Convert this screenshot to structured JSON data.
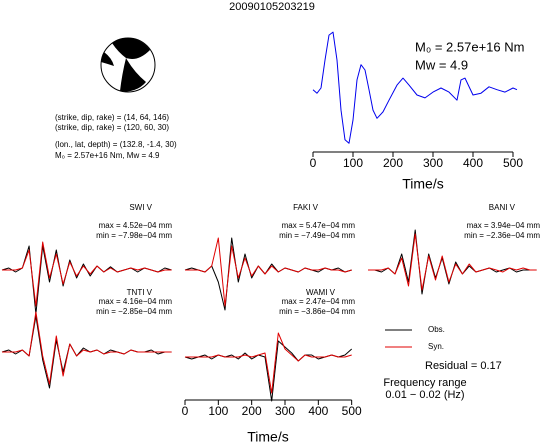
{
  "title": "20090105203219",
  "mechanism": [
    "(strike, dip, rake) = (14, 64, 146)",
    "(strike, dip, rake) = (120, 60, 30)",
    "(lon., lat, depth) = (132.8, -1.4, 30)",
    "M₀ = 2.57e+16 Nm, Mw = 4.9"
  ],
  "residual": "Residual = 0.17",
  "frequency_range": [
    "Frequency range",
    "0.01 − 0.02 (Hz)"
  ],
  "chart_data": [
    {
      "type": "line",
      "annotations": [
        "M₀ = 2.57e+16 Nm",
        "Mw = 4.9"
      ],
      "xlabel": "Time/s",
      "x": [
        0,
        10,
        20,
        30,
        40,
        50,
        60,
        70,
        80,
        90,
        100,
        110,
        120,
        130,
        140,
        150,
        160,
        175,
        190,
        210,
        225,
        240,
        260,
        280,
        300,
        320,
        340,
        360,
        370,
        380,
        400,
        420,
        440,
        460,
        480,
        500,
        510
      ],
      "series": [
        {
          "color": "#0000ee",
          "values": [
            -0.03,
            -0.09,
            0,
            0.48,
            0.91,
            0.96,
            0.48,
            -0.38,
            -0.89,
            -0.95,
            -0.55,
            0.14,
            0.4,
            0.31,
            -0.03,
            -0.38,
            -0.52,
            -0.41,
            -0.21,
            0.05,
            0.17,
            0.05,
            -0.12,
            -0.17,
            -0.07,
            0,
            -0.07,
            -0.21,
            0.14,
            0.17,
            -0.12,
            -0.09,
            0.02,
            -0.03,
            -0.07,
            0,
            -0.03
          ]
        }
      ],
      "xlim": [
        0,
        510
      ],
      "ylim": [
        -1.1,
        1.1
      ],
      "xticks": [
        0,
        100,
        200,
        300,
        400,
        500
      ]
    },
    {
      "type": "line",
      "title": "SWI V",
      "annotations": [
        "max = 4.52e−04 mm",
        "min = −7.98e−04 mm"
      ],
      "x": [
        0,
        20,
        40,
        60,
        80,
        100,
        120,
        140,
        160,
        180,
        200,
        220,
        240,
        260,
        280,
        300,
        320,
        340,
        360,
        380,
        400,
        420,
        440,
        460,
        480,
        500
      ],
      "series": [
        {
          "name": "Obs.",
          "color": "#000000",
          "values": [
            0,
            0.05,
            -0.05,
            0.05,
            0.6,
            -1.1,
            0.6,
            -0.3,
            0.5,
            -0.4,
            0.25,
            -0.2,
            0.15,
            -0.15,
            0.1,
            -0.05,
            0.08,
            -0.05,
            0,
            0.05,
            -0.05,
            0.05,
            0,
            -0.05,
            0.05,
            0
          ]
        },
        {
          "name": "Syn.",
          "color": "#e00000",
          "values": [
            0,
            0,
            0,
            0.05,
            0.5,
            -0.9,
            0.7,
            -0.2,
            0.4,
            -0.35,
            0.2,
            -0.15,
            0.1,
            -0.1,
            0.1,
            -0.05,
            0.05,
            -0.05,
            0,
            0.05,
            0,
            0.05,
            0,
            -0.05,
            0,
            0
          ]
        }
      ],
      "xlim": [
        0,
        510
      ],
      "ylim": [
        -1.2,
        1.2
      ]
    },
    {
      "type": "line",
      "title": "FAKI V",
      "annotations": [
        "max = 5.47e−04 mm",
        "min = −7.49e−04 mm"
      ],
      "x": [
        0,
        20,
        40,
        60,
        80,
        100,
        120,
        140,
        160,
        180,
        200,
        220,
        240,
        260,
        280,
        300,
        320,
        340,
        360,
        380,
        400,
        420,
        440,
        460,
        480,
        500
      ],
      "series": [
        {
          "name": "Obs.",
          "color": "#000000",
          "values": [
            0,
            0.05,
            0,
            -0.05,
            0.1,
            -0.3,
            -1.0,
            0.8,
            -0.3,
            0.4,
            -0.2,
            0.1,
            -0.1,
            0.15,
            -0.05,
            0.05,
            0,
            -0.05,
            0.05,
            0,
            -0.05,
            0.05,
            0,
            0.05,
            -0.05,
            0
          ]
        },
        {
          "name": "Syn.",
          "color": "#e00000",
          "values": [
            0,
            0,
            0,
            -0.05,
            0.1,
            0.8,
            -0.9,
            0.6,
            -0.2,
            0.3,
            -0.15,
            0.1,
            -0.1,
            0.1,
            -0.05,
            0.05,
            0,
            -0.05,
            0.05,
            0,
            0,
            0.05,
            0,
            0,
            -0.05,
            0
          ]
        }
      ],
      "xlim": [
        0,
        510
      ],
      "ylim": [
        -1.2,
        1.2
      ]
    },
    {
      "type": "line",
      "title": "BANI V",
      "annotations": [
        "max = 3.94e−04 mm",
        "min = −2.36e−04 mm"
      ],
      "x": [
        0,
        20,
        40,
        60,
        80,
        100,
        120,
        140,
        160,
        180,
        200,
        220,
        240,
        260,
        280,
        300,
        320,
        340,
        360,
        380,
        400,
        420,
        440,
        460,
        480,
        500
      ],
      "series": [
        {
          "name": "Obs.",
          "color": "#000000",
          "values": [
            0,
            0,
            -0.05,
            0.05,
            -0.1,
            0.4,
            -0.3,
            1.0,
            -0.6,
            0.4,
            -0.2,
            0.3,
            -0.35,
            0.2,
            -0.1,
            0.1,
            -0.05,
            0,
            0.05,
            -0.05,
            0,
            0.05,
            -0.05,
            0,
            0,
            0
          ]
        },
        {
          "name": "Syn.",
          "color": "#e00000",
          "values": [
            0,
            0,
            0,
            0.05,
            -0.1,
            0.3,
            -0.4,
            0.9,
            -0.5,
            0.35,
            -0.25,
            0.35,
            -0.3,
            0.15,
            -0.1,
            0.15,
            -0.05,
            0,
            0.05,
            0,
            -0.05,
            0.05,
            0,
            0.05,
            0,
            0
          ]
        }
      ],
      "xlim": [
        0,
        510
      ],
      "ylim": [
        -1.2,
        1.2
      ]
    },
    {
      "type": "line",
      "title": "TNTI V",
      "annotations": [
        "max = 4.16e−04 mm",
        "min = −2.85e−04 mm"
      ],
      "x": [
        0,
        20,
        40,
        60,
        80,
        100,
        120,
        140,
        160,
        180,
        200,
        220,
        240,
        260,
        280,
        300,
        320,
        340,
        360,
        380,
        400,
        420,
        440,
        460,
        480,
        500
      ],
      "series": [
        {
          "name": "Obs.",
          "color": "#000000",
          "values": [
            0,
            0.05,
            -0.05,
            0.05,
            -0.1,
            0.9,
            -0.2,
            -0.9,
            0.3,
            -0.5,
            0.2,
            -0.1,
            0.1,
            0,
            0.05,
            -0.05,
            0.05,
            0,
            -0.05,
            0.05,
            0,
            0,
            0.05,
            -0.05,
            0,
            0
          ]
        },
        {
          "name": "Syn.",
          "color": "#e00000",
          "values": [
            0,
            0,
            0,
            0.05,
            -0.1,
            1.0,
            -0.1,
            -0.8,
            0.4,
            -0.6,
            0.2,
            -0.1,
            0.05,
            0,
            0.05,
            -0.05,
            0,
            0,
            -0.05,
            0.05,
            0,
            0,
            0,
            0,
            0,
            0
          ]
        }
      ],
      "xlim": [
        0,
        510
      ],
      "ylim": [
        -1.2,
        1.2
      ]
    },
    {
      "type": "line",
      "title": "WAMI V",
      "annotations": [
        "max = 2.47e−04 mm",
        "min = −3.86e−04 mm"
      ],
      "xlabel": "Time/s",
      "x": [
        0,
        20,
        40,
        60,
        80,
        100,
        120,
        140,
        160,
        180,
        200,
        220,
        240,
        260,
        280,
        300,
        320,
        340,
        360,
        380,
        400,
        420,
        440,
        460,
        480,
        500
      ],
      "series": [
        {
          "name": "Obs.",
          "color": "#000000",
          "values": [
            0,
            -0.05,
            0,
            0.05,
            -0.05,
            0.05,
            0,
            0.05,
            -0.05,
            0.1,
            -0.05,
            0.05,
            0,
            -1.1,
            0.4,
            0.25,
            0.1,
            -0.1,
            0.05,
            0.05,
            -0.05,
            0,
            0.05,
            0,
            0.05,
            0.2
          ]
        },
        {
          "name": "Syn.",
          "color": "#e00000",
          "values": [
            0,
            0,
            0,
            0,
            0,
            0.05,
            0,
            0,
            0,
            0.05,
            0,
            0.05,
            0.1,
            -0.9,
            0.6,
            0.2,
            0.05,
            -0.1,
            0.05,
            0,
            0,
            0,
            0.05,
            0,
            0,
            0.05
          ]
        }
      ],
      "xlim": [
        0,
        510
      ],
      "ylim": [
        -1.2,
        1.2
      ],
      "xticks": [
        0,
        100,
        200,
        300,
        400,
        500
      ]
    }
  ]
}
